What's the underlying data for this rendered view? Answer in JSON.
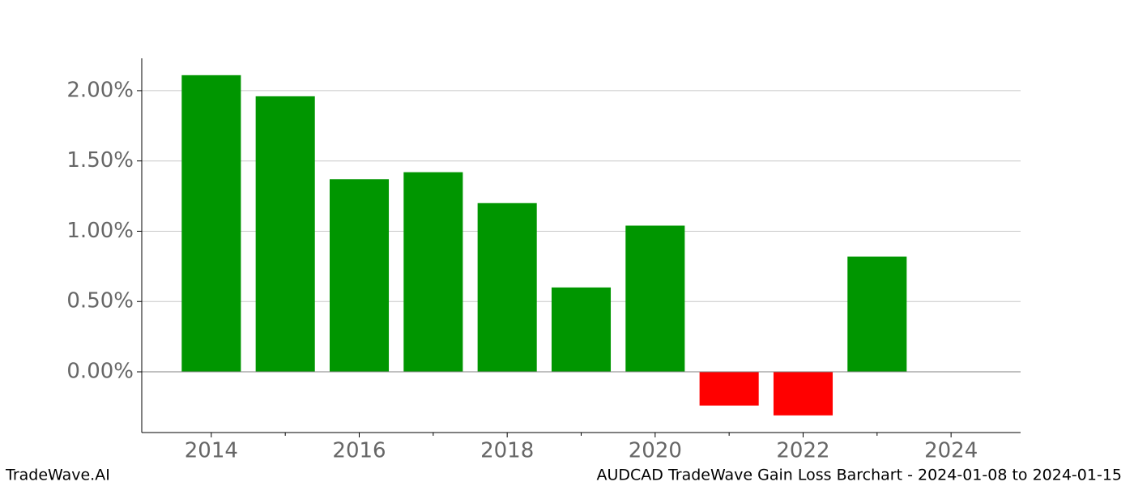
{
  "chart_data": {
    "type": "bar",
    "title": "AUDCAD TradeWave Gain Loss Barchart - 2024-01-08 to 2024-01-15",
    "watermark": "TradeWave.AI",
    "x": [
      2014,
      2015,
      2016,
      2017,
      2018,
      2019,
      2020,
      2021,
      2022,
      2023
    ],
    "values": [
      2.11,
      1.96,
      1.37,
      1.42,
      1.2,
      0.6,
      1.04,
      -0.24,
      -0.31,
      0.82
    ],
    "colors": [
      "#009600",
      "#009600",
      "#009600",
      "#009600",
      "#009600",
      "#009600",
      "#009600",
      "#ff0000",
      "#ff0000",
      "#009600"
    ],
    "bar_width": 0.8,
    "xlim": [
      2013.06,
      2024.94
    ],
    "xticks": [
      2014,
      2016,
      2018,
      2020,
      2022,
      2024
    ],
    "xticks_minor": [
      2015,
      2017,
      2019,
      2021,
      2023
    ],
    "ylim": [
      -0.432,
      2.23
    ],
    "yticks": [
      {
        "value": 0,
        "label": "0.00%"
      },
      {
        "value": 0.5,
        "label": "0.50%"
      },
      {
        "value": 1,
        "label": "1.00%"
      },
      {
        "value": 1.5,
        "label": "1.50%"
      },
      {
        "value": 2,
        "label": "2.00%"
      }
    ],
    "grid": true
  }
}
